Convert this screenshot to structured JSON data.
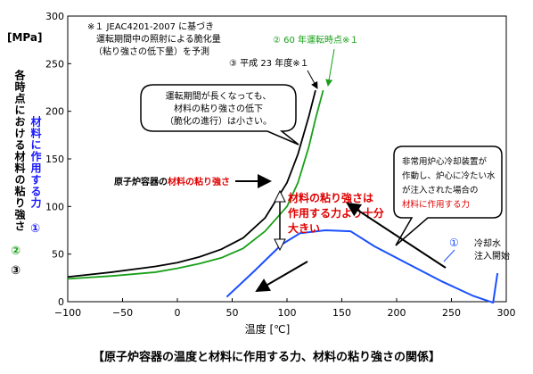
{
  "chart_data": {
    "type": "line",
    "title": "【原子炉容器の温度と材料に作用する力、材料の粘り強さの関係】",
    "ylabel_unit": "[MPa]",
    "ylabel_parts": [
      {
        "text": "各時点における材料の粘り強さ",
        "color": "#000000"
      },
      {
        "text": "材料に作用する力",
        "color": "#1a1aff"
      },
      {
        "text": "①",
        "color": "#1a1aff"
      },
      {
        "text": "②",
        "color": "#18a018"
      },
      {
        "text": "③",
        "color": "#000000"
      }
    ],
    "xlabel": "温度 [℃]",
    "xlim": [
      -100,
      300
    ],
    "ylim": [
      0,
      300
    ],
    "xticks": [
      -100,
      -50,
      0,
      50,
      100,
      150,
      200,
      250,
      300
    ],
    "yticks": [
      0,
      50,
      100,
      150,
      200,
      250,
      300
    ],
    "series": [
      {
        "key": "current",
        "marker": "③",
        "color": "#000000",
        "points": [
          [
            -100,
            26
          ],
          [
            -60,
            31
          ],
          [
            -20,
            37
          ],
          [
            0,
            41
          ],
          [
            20,
            47
          ],
          [
            40,
            55
          ],
          [
            60,
            67
          ],
          [
            80,
            88
          ],
          [
            100,
            125
          ],
          [
            110,
            155
          ],
          [
            120,
            195
          ],
          [
            126,
            222
          ]
        ]
      },
      {
        "key": "sixty_years",
        "marker": "②",
        "color": "#18a018",
        "points": [
          [
            -100,
            24
          ],
          [
            -60,
            27
          ],
          [
            -20,
            31
          ],
          [
            0,
            35
          ],
          [
            20,
            40
          ],
          [
            40,
            46
          ],
          [
            60,
            56
          ],
          [
            80,
            74
          ],
          [
            100,
            100
          ],
          [
            110,
            125
          ],
          [
            120,
            163
          ],
          [
            126,
            192
          ],
          [
            133,
            222
          ]
        ]
      },
      {
        "key": "force",
        "marker": "①",
        "color": "#1a4fff",
        "points": [
          [
            45,
            5
          ],
          [
            70,
            32
          ],
          [
            95,
            60
          ],
          [
            112,
            72
          ],
          [
            135,
            75
          ],
          [
            158,
            74
          ],
          [
            180,
            58
          ],
          [
            210,
            40
          ],
          [
            240,
            22
          ],
          [
            270,
            6
          ],
          [
            288,
            -1
          ],
          [
            292,
            30
          ]
        ]
      }
    ],
    "annotations": {
      "note_title": "※１ JEAC4201-2007 に基づき",
      "note_line2": "運転期間中の照射による脆化量",
      "note_line3": "（粘り強さの低下量）を予測",
      "label_sixty": "② 60 年運転時点※１",
      "label_h23": "③ 平成 23 年度※１",
      "bubble_lines": [
        "運転期間が長くなっても、",
        "材料の粘り強さの低下",
        "（脆化の進行）は小さい。"
      ],
      "vessel_prefix": "原子炉容器の",
      "vessel_highlight": "材料の粘り強さ",
      "margin_lines": [
        "材料の粘り強さは",
        "作用する力より十分",
        "大きい"
      ],
      "cooldown_lines": [
        "非常用炉心冷却装置が",
        "作動し、炉心に冷たい水",
        "が注入された場合の"
      ],
      "cooldown_highlight": "材料に作用する力",
      "force_marker": "①",
      "injection_lines": [
        "冷却水",
        "注入開始"
      ]
    }
  }
}
